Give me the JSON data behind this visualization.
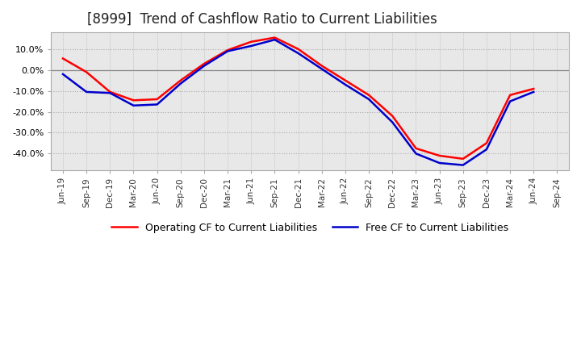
{
  "title": "[8999]  Trend of Cashflow Ratio to Current Liabilities",
  "x_labels": [
    "Jun-19",
    "Sep-19",
    "Dec-19",
    "Mar-20",
    "Jun-20",
    "Sep-20",
    "Dec-20",
    "Mar-21",
    "Jun-21",
    "Sep-21",
    "Dec-21",
    "Mar-22",
    "Jun-22",
    "Sep-22",
    "Dec-22",
    "Mar-23",
    "Jun-23",
    "Sep-23",
    "Dec-23",
    "Mar-24",
    "Jun-24",
    "Sep-24"
  ],
  "operating_cf": [
    5.5,
    -1.0,
    -10.5,
    -14.5,
    -14.0,
    -5.0,
    3.0,
    9.5,
    13.5,
    15.5,
    10.0,
    2.0,
    -5.0,
    -12.0,
    -22.0,
    -37.5,
    -41.0,
    -42.5,
    -35.0,
    -12.0,
    -9.0,
    null
  ],
  "free_cf": [
    -2.0,
    -10.5,
    -11.0,
    -17.0,
    -16.5,
    -6.5,
    2.0,
    9.0,
    11.5,
    14.5,
    8.0,
    0.5,
    -7.0,
    -14.0,
    -25.0,
    -40.0,
    -44.5,
    -45.5,
    -38.0,
    -15.0,
    -10.5,
    null
  ],
  "operating_color": "#ff0000",
  "free_color": "#0000cc",
  "ylim": [
    -48,
    18
  ],
  "yticks": [
    10.0,
    0.0,
    -10.0,
    -20.0,
    -30.0,
    -40.0
  ],
  "plot_bg_color": "#e8e8e8",
  "outer_bg_color": "#ffffff",
  "grid_color": "#ffffff",
  "dot_grid_color": "#aaaaaa",
  "title_fontsize": 12,
  "legend_labels": [
    "Operating CF to Current Liabilities",
    "Free CF to Current Liabilities"
  ]
}
